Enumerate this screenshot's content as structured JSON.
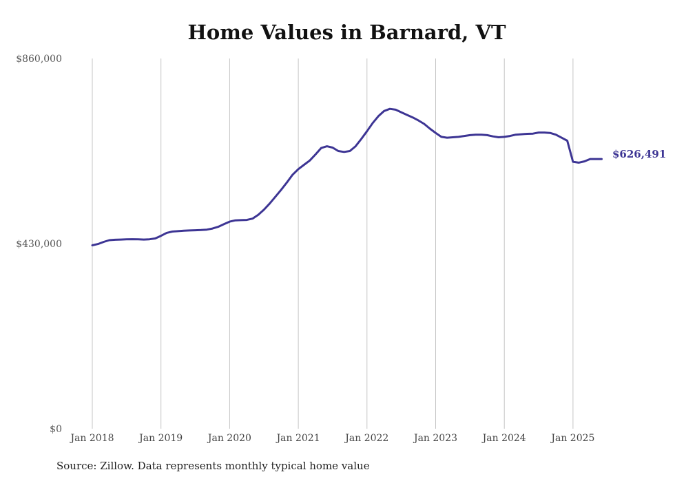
{
  "chart_data": {
    "type": "line",
    "title": "Home Values in Barnard, VT",
    "xlabel": "",
    "ylabel": "",
    "ylim": [
      0,
      860000
    ],
    "yticks": [
      {
        "value": 0,
        "label": "$0"
      },
      {
        "value": 430000,
        "label": "$430,000"
      },
      {
        "value": 860000,
        "label": "$860,000"
      }
    ],
    "xticks": [
      {
        "value": 2018,
        "label": "Jan 2018"
      },
      {
        "value": 2019,
        "label": "Jan 2019"
      },
      {
        "value": 2020,
        "label": "Jan 2020"
      },
      {
        "value": 2021,
        "label": "Jan 2021"
      },
      {
        "value": 2022,
        "label": "Jan 2022"
      },
      {
        "value": 2023,
        "label": "Jan 2023"
      },
      {
        "value": 2024,
        "label": "Jan 2024"
      },
      {
        "value": 2025,
        "label": "Jan 2025"
      }
    ],
    "grid": "vertical",
    "end_label": "$626,491",
    "color": "#3d3594",
    "series": [
      {
        "x": [
          2018.0,
          2018.083,
          2018.167,
          2018.25,
          2018.333,
          2018.417,
          2018.5,
          2018.583,
          2018.667,
          2018.75,
          2018.833,
          2018.917,
          2019.0,
          2019.083,
          2019.167,
          2019.25,
          2019.333,
          2019.417,
          2019.5,
          2019.583,
          2019.667,
          2019.75,
          2019.833,
          2019.917,
          2020.0,
          2020.083,
          2020.167,
          2020.25,
          2020.333,
          2020.417,
          2020.5,
          2020.583,
          2020.667,
          2020.75,
          2020.833,
          2020.917,
          2021.0,
          2021.083,
          2021.167,
          2021.25,
          2021.333,
          2021.417,
          2021.5,
          2021.583,
          2021.667,
          2021.75,
          2021.833,
          2021.917,
          2022.0,
          2022.083,
          2022.167,
          2022.25,
          2022.333,
          2022.417,
          2022.5,
          2022.583,
          2022.667,
          2022.75,
          2022.833,
          2022.917,
          2023.0,
          2023.083,
          2023.167,
          2023.25,
          2023.333,
          2023.417,
          2023.5,
          2023.583,
          2023.667,
          2023.75,
          2023.833,
          2023.917,
          2024.0,
          2024.083,
          2024.167,
          2024.25,
          2024.333,
          2024.417,
          2024.5,
          2024.583,
          2024.667,
          2024.75,
          2024.833,
          2024.917,
          2025.0,
          2025.083,
          2025.167,
          2025.25,
          2025.333,
          2025.417
        ],
        "values": [
          426000,
          429000,
          434000,
          438000,
          439000,
          439500,
          440000,
          440200,
          440000,
          439500,
          440000,
          442000,
          448000,
          455000,
          458000,
          459000,
          460000,
          460500,
          461000,
          461500,
          462500,
          465000,
          469000,
          475000,
          481000,
          484000,
          484500,
          485000,
          488000,
          497000,
          509000,
          523000,
          539000,
          555000,
          572000,
          590000,
          603000,
          613000,
          623000,
          637000,
          652000,
          656000,
          653000,
          645000,
          643000,
          645000,
          656000,
          673000,
          691000,
          710000,
          726000,
          738000,
          743000,
          741000,
          735000,
          729000,
          723000,
          716000,
          708000,
          697000,
          687000,
          678000,
          676000,
          677000,
          678000,
          680000,
          682000,
          683000,
          683000,
          682000,
          679000,
          677000,
          678000,
          680000,
          683000,
          684000,
          685000,
          685500,
          688000,
          688000,
          687000,
          683000,
          676000,
          669000,
          620000,
          618000,
          621000,
          626491,
          626491,
          626491
        ]
      }
    ]
  },
  "source": "Source: Zillow. Data represents monthly typical home value"
}
